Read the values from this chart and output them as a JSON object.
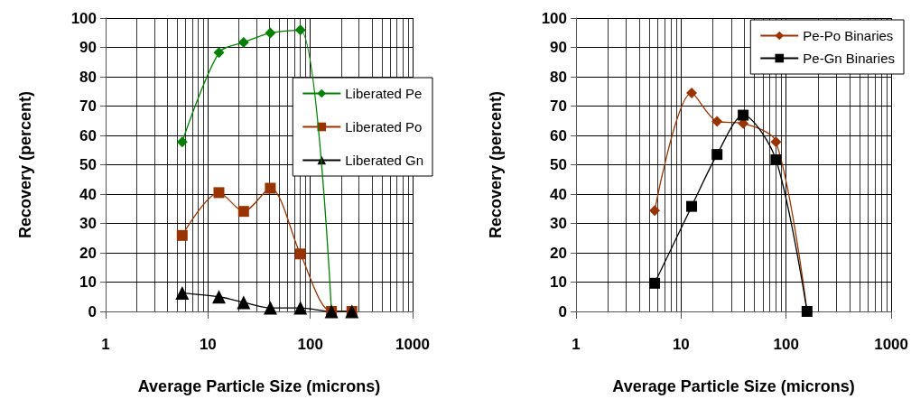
{
  "chart_data": [
    {
      "type": "line",
      "xlabel": "Average Particle Size (microns)",
      "ylabel": "Recovery (percent)",
      "x": [
        5.6,
        12.8,
        22.3,
        40.7,
        80,
        161,
        255
      ],
      "series": [
        {
          "name": "Liberated Pe",
          "color": "#008000",
          "marker": "diamond",
          "values": [
            57.8,
            88.2,
            91.7,
            94.9,
            95.9,
            0,
            null
          ]
        },
        {
          "name": "Liberated Po",
          "color": "#993300",
          "marker": "square",
          "values": [
            25.9,
            40.5,
            34.1,
            42.0,
            19.6,
            0,
            0
          ]
        },
        {
          "name": "Liberated Gn",
          "color": "#000000",
          "marker": "triangle",
          "values": [
            6.3,
            5.0,
            3.1,
            1.2,
            1.2,
            0,
            0
          ]
        }
      ],
      "log": "x",
      "xlim": [
        1,
        1000
      ],
      "xticks": [
        1,
        10,
        100,
        1000
      ],
      "ylim": [
        0,
        100
      ],
      "yticks": [
        0,
        10,
        20,
        30,
        40,
        50,
        60,
        70,
        80,
        90,
        100
      ],
      "grid": true,
      "legend": "right"
    },
    {
      "type": "line",
      "xlabel": "Average Particle Size (microns)",
      "ylabel": "Recovery (percent)",
      "x": [
        5.6,
        12.6,
        22,
        39,
        80,
        158
      ],
      "series": [
        {
          "name": "Pe-Po Binaries",
          "color": "#993300",
          "marker": "diamond",
          "values": [
            34.4,
            74.5,
            64.8,
            64.1,
            57.8,
            0
          ]
        },
        {
          "name": "Pe-Gn Binaries",
          "color": "#000000",
          "marker": "square",
          "values": [
            9.6,
            35.8,
            53.5,
            66.9,
            51.7,
            0
          ]
        }
      ],
      "log": "x",
      "xlim": [
        1,
        1000
      ],
      "xticks": [
        1,
        10,
        100,
        1000
      ],
      "ylim": [
        0,
        100
      ],
      "yticks": [
        0,
        10,
        20,
        30,
        40,
        50,
        60,
        70,
        80,
        90,
        100
      ],
      "grid": true,
      "legend": "top right"
    }
  ]
}
